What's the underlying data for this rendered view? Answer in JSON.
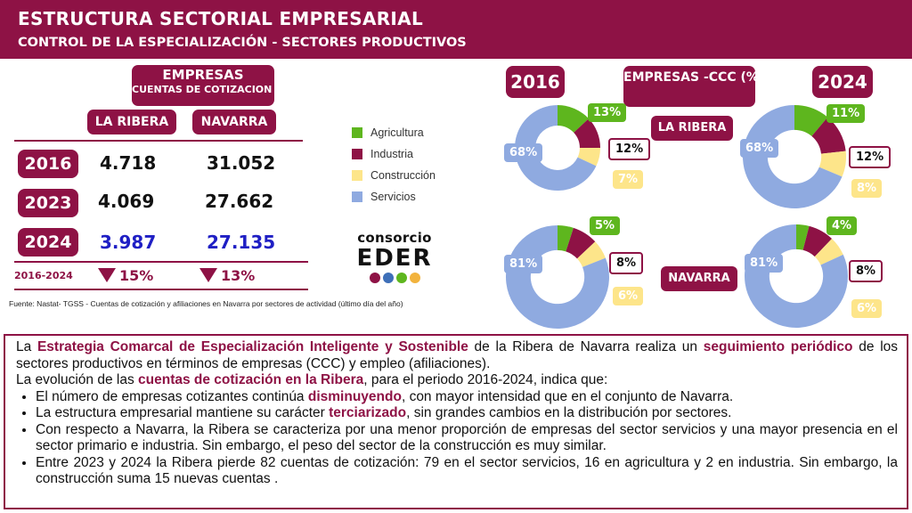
{
  "header": {
    "title": "ESTRUCTURA SECTORIAL EMPRESARIAL",
    "subtitle": "CONTROL DE LA ESPECIALIZACIÓN - SECTORES PRODUCTIVOS"
  },
  "table": {
    "title_line1": "EMPRESAS",
    "title_line2": "CUENTAS DE COTIZACION (CCC)",
    "col_ribera": "LA RIBERA",
    "col_navarra": "NAVARRA",
    "rows": [
      {
        "year": "2016",
        "ribera": "4.718",
        "navarra": "31.052"
      },
      {
        "year": "2023",
        "ribera": "4.069",
        "navarra": "27.662"
      },
      {
        "year": "2024",
        "ribera": "3.987",
        "navarra": "27.135"
      }
    ],
    "change_label": "2016-2024",
    "change_ribera": "15%",
    "change_navarra": "13%"
  },
  "source": "Fuente: Nastat- TGSS - Cuentas de cotización y afiliaciones en Navarra  por sectores de actividad (último día del año)",
  "legend": [
    {
      "label": "Agricultura",
      "color": "#5eb61e"
    },
    {
      "label": "Industria",
      "color": "#8e1245"
    },
    {
      "label": "Construcción",
      "color": "#fde58a"
    },
    {
      "label": "Servicios",
      "color": "#8faae0"
    }
  ],
  "logo": {
    "line1": "consorcio",
    "line2": "EDER",
    "dot_colors": [
      "#8e1245",
      "#3e6fb8",
      "#5eb61e",
      "#f2b33d"
    ]
  },
  "charts_header": {
    "title": "EMPRESAS -CCC (%)",
    "year_left": "2016",
    "year_right": "2024",
    "region_ribera": "LA RIBERA",
    "region_navarra": "NAVARRA"
  },
  "chart_data": [
    {
      "type": "pie",
      "title": "",
      "region": "LA RIBERA",
      "year": "2016",
      "categories": [
        "Agricultura",
        "Industria",
        "Construcción",
        "Servicios"
      ],
      "values": [
        13,
        12,
        7,
        68
      ],
      "labels": [
        "13%",
        "12%",
        "7%",
        "68%"
      ]
    },
    {
      "type": "pie",
      "title": "",
      "region": "LA RIBERA",
      "year": "2024",
      "categories": [
        "Agricultura",
        "Industria",
        "Construcción",
        "Servicios"
      ],
      "values": [
        11,
        12,
        8,
        68
      ],
      "labels": [
        "11%",
        "12%",
        "8%",
        "68%"
      ]
    },
    {
      "type": "pie",
      "title": "",
      "region": "NAVARRA",
      "year": "2016",
      "categories": [
        "Agricultura",
        "Industria",
        "Construcción",
        "Servicios"
      ],
      "values": [
        5,
        8,
        6,
        81
      ],
      "labels": [
        "5%",
        "8%",
        "6%",
        "81%"
      ]
    },
    {
      "type": "pie",
      "title": "",
      "region": "NAVARRA",
      "year": "2024",
      "categories": [
        "Agricultura",
        "Industria",
        "Construcción",
        "Servicios"
      ],
      "values": [
        4,
        8,
        6,
        81
      ],
      "labels": [
        "4%",
        "8%",
        "6%",
        "81%"
      ]
    }
  ],
  "text": {
    "p1": [
      {
        "t": "La ",
        "b": false
      },
      {
        "t": "Estrategia Comarcal de Especialización Inteligente y Sostenible",
        "b": true
      },
      {
        "t": " de la Ribera de Navarra realiza un ",
        "b": false
      },
      {
        "t": "seguimiento periódico",
        "b": true
      },
      {
        "t": " de los sectores productivos en términos de empresas (CCC) y empleo (afiliaciones).",
        "b": false
      }
    ],
    "p2": [
      {
        "t": "La evolución de las ",
        "b": false
      },
      {
        "t": "cuentas de cotización en la Ribera",
        "b": true
      },
      {
        "t": ", para el  periodo 2016-2024, indica que:",
        "b": false
      }
    ],
    "bullets": [
      [
        {
          "t": "El número de empresas cotizantes continúa ",
          "b": false
        },
        {
          "t": "disminuyendo",
          "b": true
        },
        {
          "t": ", con mayor intensidad que en el conjunto de Navarra.",
          "b": false
        }
      ],
      [
        {
          "t": "La estructura empresarial mantiene su carácter ",
          "b": false
        },
        {
          "t": "terciarizado",
          "b": true
        },
        {
          "t": ", sin grandes cambios en la distribución por sectores.",
          "b": false
        }
      ],
      [
        {
          "t": "Con respecto a Navarra, la Ribera se caracteriza por una menor proporción de empresas del sector servicios y una mayor presencia en el sector primario e industria. Sin embargo, el peso del sector de la construcción es muy similar.",
          "b": false
        }
      ],
      [
        {
          "t": "Entre 2023 y 2024 la Ribera pierde 82 cuentas de cotización: 79 en el sector servicios, 16 en agricultura y 2 en industria. Sin embargo, la construcción suma 15 nuevas cuentas .",
          "b": false
        }
      ]
    ]
  }
}
